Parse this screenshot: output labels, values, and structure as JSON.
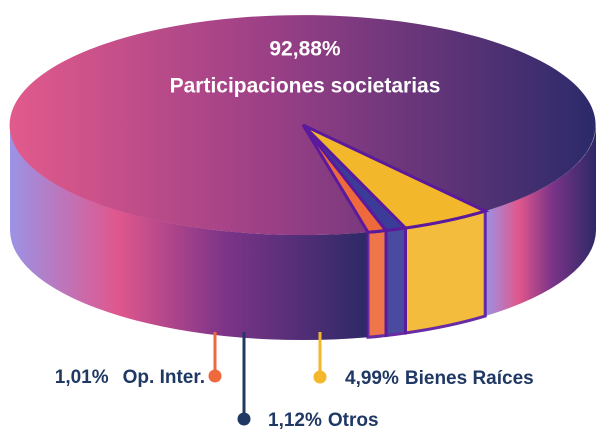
{
  "chart_data": {
    "type": "pie",
    "categories": [
      "Participaciones societarias",
      "Op. Inter.",
      "Otros",
      "Bienes Raíces"
    ],
    "values": [
      92.88,
      1.01,
      1.12,
      4.99
    ],
    "value_labels": [
      "92,88%",
      "1,01%",
      "1,12%",
      "4,99%"
    ],
    "colors": [
      "#9c3f86",
      "#ee6a3c",
      "#3b3b98",
      "#f3b72c"
    ]
  }
}
